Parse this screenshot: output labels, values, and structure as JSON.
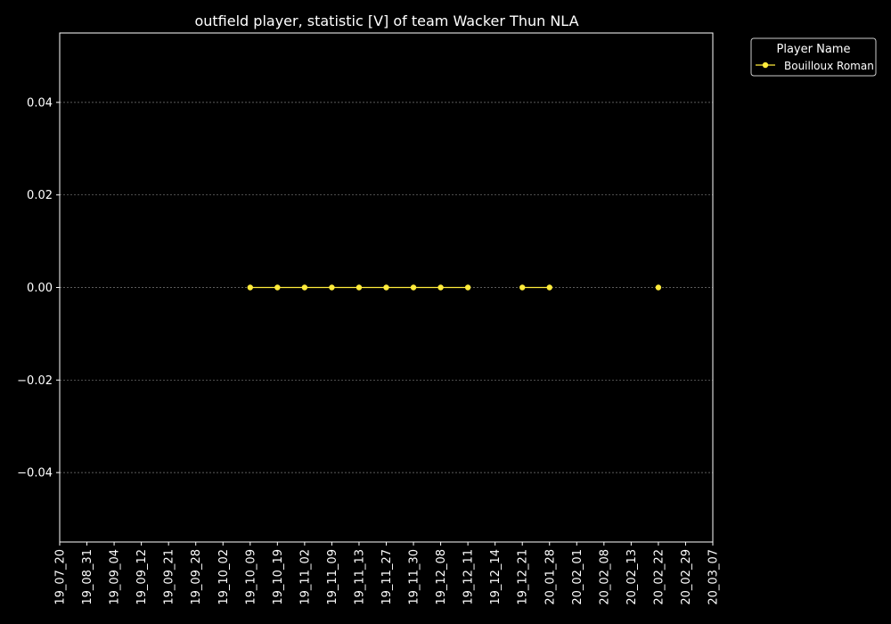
{
  "chart_data": {
    "type": "line",
    "title": "outfield player, statistic [V] of team Wacker Thun NLA",
    "xlabel": "",
    "ylabel": "",
    "x_categories": [
      "19_07_20",
      "19_08_31",
      "19_09_04",
      "19_09_12",
      "19_09_21",
      "19_09_28",
      "19_10_02",
      "19_10_09",
      "19_10_19",
      "19_11_02",
      "19_11_09",
      "19_11_13",
      "19_11_27",
      "19_11_30",
      "19_12_08",
      "19_12_11",
      "19_12_14",
      "19_12_21",
      "20_01_28",
      "20_02_01",
      "20_02_08",
      "20_02_13",
      "20_02_22",
      "20_02_29",
      "20_03_07"
    ],
    "y_ticks": [
      0.04,
      0.02,
      0.0,
      -0.02,
      -0.04
    ],
    "y_tick_labels": [
      "0.04",
      "0.02",
      "0.00",
      "−0.02",
      "−0.04"
    ],
    "ylim": [
      -0.055,
      0.055
    ],
    "grid": "horizontal dotted",
    "legend": {
      "title": "Player Name",
      "placement": "outside top-right"
    },
    "series": [
      {
        "name": "Bouilloux Roman",
        "color": "#ffeb3b",
        "points": [
          {
            "x": "19_10_09",
            "y": 0.0
          },
          {
            "x": "19_10_19",
            "y": 0.0
          },
          {
            "x": "19_11_02",
            "y": 0.0
          },
          {
            "x": "19_11_09",
            "y": 0.0
          },
          {
            "x": "19_11_13",
            "y": 0.0
          },
          {
            "x": "19_11_27",
            "y": 0.0
          },
          {
            "x": "19_11_30",
            "y": 0.0
          },
          {
            "x": "19_12_08",
            "y": 0.0
          },
          {
            "x": "19_12_11",
            "y": 0.0
          },
          {
            "x": "19_12_21",
            "y": 0.0
          },
          {
            "x": "20_01_28",
            "y": 0.0
          },
          {
            "x": "20_02_22",
            "y": 0.0
          }
        ],
        "segments": [
          [
            "19_10_09",
            "19_10_19",
            "19_11_02",
            "19_11_09",
            "19_11_13",
            "19_11_27",
            "19_11_30",
            "19_12_08",
            "19_12_11"
          ],
          [
            "19_12_21",
            "20_01_28"
          ],
          [
            "20_02_22"
          ]
        ]
      }
    ]
  }
}
